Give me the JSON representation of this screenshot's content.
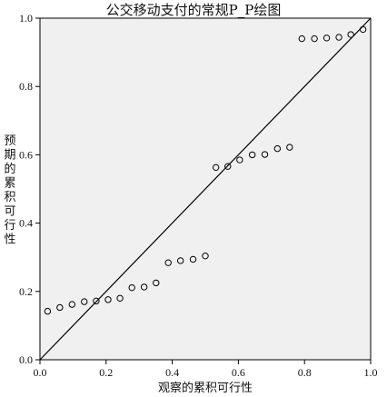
{
  "chart_data": {
    "type": "scatter",
    "title": "公交移动支付的常规P_P绘图",
    "xlabel": "观察的累积可行性",
    "ylabel": "预期的累积可行性",
    "xlim": [
      0,
      1
    ],
    "ylim": [
      0,
      1
    ],
    "x_ticks": [
      "0.0",
      "0.2",
      "0.4",
      "0.6",
      "0.8",
      "1.0"
    ],
    "y_ticks": [
      "0.0",
      "0.2",
      "0.4",
      "0.6",
      "0.8",
      "1.0"
    ],
    "reference_line": "diagonal",
    "grid": false,
    "points": [
      {
        "x": 0.023,
        "y": 0.142
      },
      {
        "x": 0.06,
        "y": 0.153
      },
      {
        "x": 0.097,
        "y": 0.162
      },
      {
        "x": 0.134,
        "y": 0.17
      },
      {
        "x": 0.17,
        "y": 0.172
      },
      {
        "x": 0.206,
        "y": 0.176
      },
      {
        "x": 0.242,
        "y": 0.18
      },
      {
        "x": 0.278,
        "y": 0.211
      },
      {
        "x": 0.315,
        "y": 0.213
      },
      {
        "x": 0.351,
        "y": 0.225
      },
      {
        "x": 0.388,
        "y": 0.284
      },
      {
        "x": 0.425,
        "y": 0.29
      },
      {
        "x": 0.463,
        "y": 0.294
      },
      {
        "x": 0.5,
        "y": 0.304
      },
      {
        "x": 0.532,
        "y": 0.563
      },
      {
        "x": 0.568,
        "y": 0.566
      },
      {
        "x": 0.604,
        "y": 0.585
      },
      {
        "x": 0.642,
        "y": 0.6
      },
      {
        "x": 0.68,
        "y": 0.601
      },
      {
        "x": 0.718,
        "y": 0.618
      },
      {
        "x": 0.755,
        "y": 0.622
      },
      {
        "x": 0.792,
        "y": 0.94
      },
      {
        "x": 0.83,
        "y": 0.94
      },
      {
        "x": 0.867,
        "y": 0.942
      },
      {
        "x": 0.904,
        "y": 0.944
      },
      {
        "x": 0.94,
        "y": 0.952
      },
      {
        "x": 0.977,
        "y": 0.967
      }
    ]
  }
}
